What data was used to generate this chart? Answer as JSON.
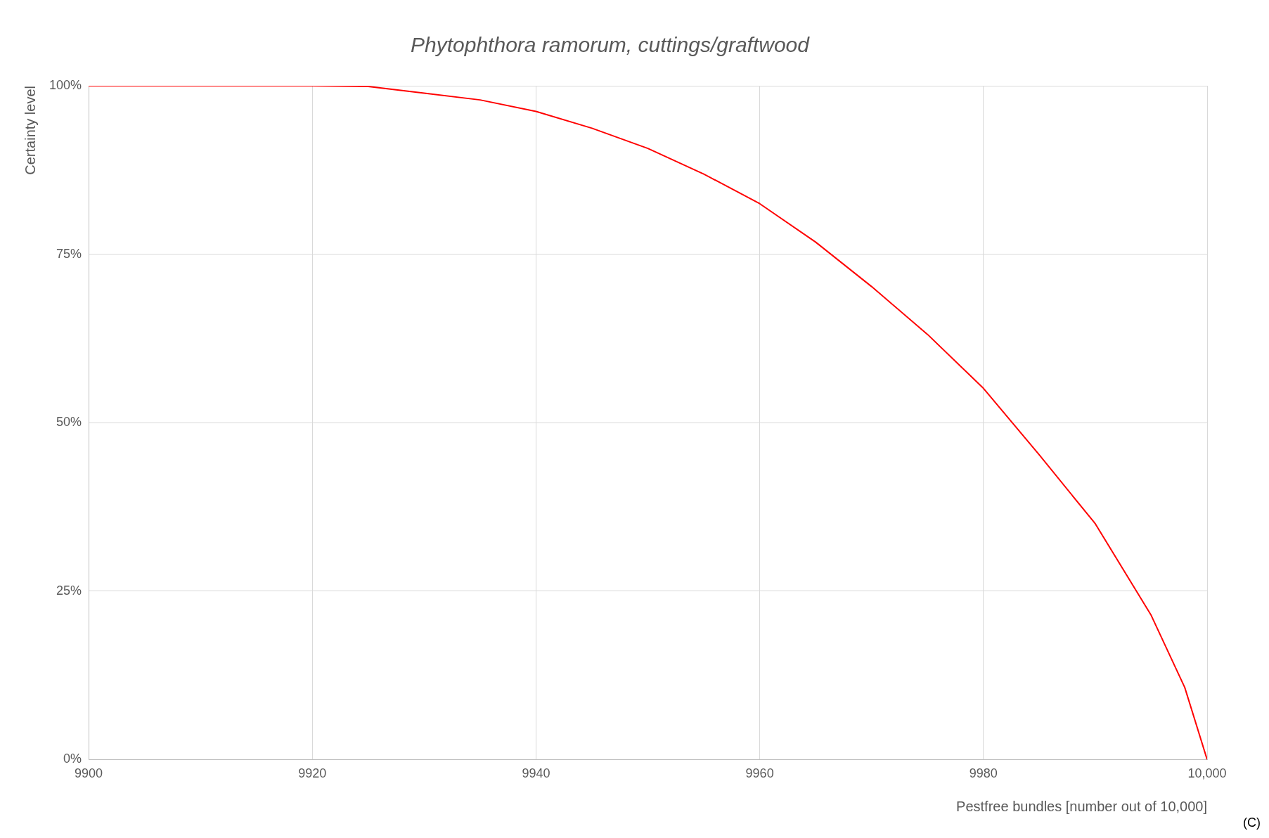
{
  "chart_data": {
    "type": "line",
    "title": "Phytophthora ramorum, cuttings/graftwood",
    "xlabel": "Pestfree bundles [number out of 10,000]",
    "ylabel": "Certainty level",
    "annotations": [
      "(C)"
    ],
    "x": [
      9900,
      9910,
      9920,
      9925,
      9930,
      9935,
      9940,
      9945,
      9950,
      9955,
      9960,
      9965,
      9970,
      9975,
      9980,
      9985,
      9990,
      9995,
      9998,
      10000
    ],
    "series": [
      {
        "color": "#ff0000",
        "values": [
          100,
          100,
          100,
          99.9,
          98.9,
          97.9,
          96.2,
          93.7,
          90.7,
          86.9,
          82.5,
          76.8,
          70.2,
          63.1,
          55.1,
          45.2,
          35,
          21.4,
          10.7,
          0
        ]
      }
    ],
    "xlim": [
      9900,
      10000
    ],
    "xticks": [
      9900,
      9920,
      9940,
      9960,
      9980,
      {
        "value": 10000,
        "label": "10,000"
      }
    ],
    "ylim": [
      0,
      100
    ],
    "yticks": [
      {
        "value": 0,
        "label": "0%"
      },
      {
        "value": 25,
        "label": "25%"
      },
      {
        "value": 50,
        "label": "50%"
      },
      {
        "value": 75,
        "label": "75%"
      },
      {
        "value": 100,
        "label": "100%"
      }
    ],
    "grid": true,
    "legend": false,
    "marker": "none",
    "line_style": "solid"
  }
}
